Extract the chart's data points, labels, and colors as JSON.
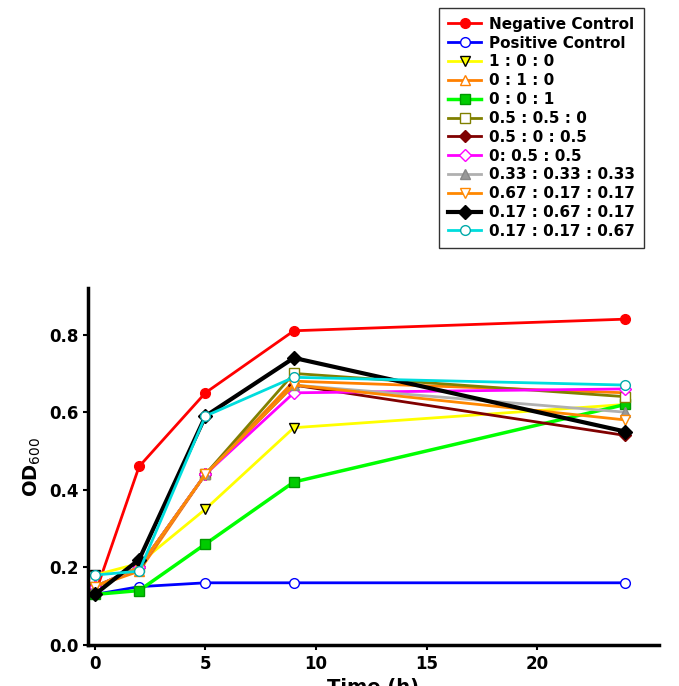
{
  "x": [
    0,
    2,
    5,
    9,
    24
  ],
  "series": [
    {
      "label": "Negative Control",
      "color": "#ff0000",
      "marker": "o",
      "marker_face": "#ff0000",
      "marker_edge": "#ff0000",
      "linewidth": 2,
      "markersize": 7,
      "values": [
        0.13,
        0.46,
        0.65,
        0.81,
        0.84
      ]
    },
    {
      "label": "Positive Control",
      "color": "#0000ff",
      "marker": "o",
      "marker_face": "white",
      "marker_edge": "#0000ff",
      "linewidth": 2,
      "markersize": 7,
      "values": [
        0.13,
        0.15,
        0.16,
        0.16,
        0.16
      ]
    },
    {
      "label": "1 : 0 : 0",
      "color": "#ffff00",
      "marker": "v",
      "marker_face": "#ffff00",
      "marker_edge": "#000000",
      "linewidth": 2,
      "markersize": 7,
      "values": [
        0.18,
        0.21,
        0.35,
        0.56,
        0.62
      ]
    },
    {
      "label": "0 : 1 : 0",
      "color": "#ff8000",
      "marker": "^",
      "marker_face": "white",
      "marker_edge": "#ff8000",
      "linewidth": 2,
      "markersize": 7,
      "values": [
        0.15,
        0.19,
        0.44,
        0.68,
        0.65
      ]
    },
    {
      "label": "0 : 0 : 1",
      "color": "#00ff00",
      "marker": "s",
      "marker_face": "#00cc00",
      "marker_edge": "#009900",
      "linewidth": 2.5,
      "markersize": 7,
      "values": [
        0.13,
        0.14,
        0.26,
        0.42,
        0.62
      ]
    },
    {
      "label": "0.5 : 0.5 : 0",
      "color": "#808000",
      "marker": "s",
      "marker_face": "white",
      "marker_edge": "#808000",
      "linewidth": 2,
      "markersize": 7,
      "values": [
        0.15,
        0.2,
        0.44,
        0.7,
        0.64
      ]
    },
    {
      "label": "0.5 : 0 : 0.5",
      "color": "#800000",
      "marker": "D",
      "marker_face": "#800000",
      "marker_edge": "#800000",
      "linewidth": 2,
      "markersize": 6,
      "values": [
        0.15,
        0.2,
        0.44,
        0.67,
        0.54
      ]
    },
    {
      "label": "0: 0.5 : 0.5",
      "color": "#ff00ff",
      "marker": "D",
      "marker_face": "white",
      "marker_edge": "#ff00ff",
      "linewidth": 2,
      "markersize": 6,
      "values": [
        0.15,
        0.2,
        0.44,
        0.65,
        0.66
      ]
    },
    {
      "label": "0.33 : 0.33 : 0.33",
      "color": "#b0b0b0",
      "marker": "^",
      "marker_face": "#999999",
      "marker_edge": "#888888",
      "linewidth": 2,
      "markersize": 7,
      "values": [
        0.15,
        0.2,
        0.44,
        0.67,
        0.6
      ]
    },
    {
      "label": "0.67 : 0.17 : 0.17",
      "color": "#ff8800",
      "marker": "v",
      "marker_face": "white",
      "marker_edge": "#ff8800",
      "linewidth": 2,
      "markersize": 7,
      "values": [
        0.15,
        0.2,
        0.44,
        0.67,
        0.58
      ]
    },
    {
      "label": "0.17 : 0.67 : 0.17",
      "color": "#000000",
      "marker": "D",
      "marker_face": "#000000",
      "marker_edge": "#000000",
      "linewidth": 3,
      "markersize": 7,
      "values": [
        0.13,
        0.22,
        0.59,
        0.74,
        0.55
      ]
    },
    {
      "label": "0.17 : 0.17 : 0.67",
      "color": "#00dddd",
      "marker": "o",
      "marker_face": "white",
      "marker_edge": "#00aaaa",
      "linewidth": 2,
      "markersize": 7,
      "values": [
        0.18,
        0.19,
        0.59,
        0.69,
        0.67
      ]
    }
  ],
  "xlabel": "Time (h)",
  "xlim": [
    -0.3,
    25.5
  ],
  "ylim": [
    0.0,
    0.92
  ],
  "xticks": [
    0,
    5,
    10,
    15,
    20
  ],
  "yticks": [
    0.0,
    0.2,
    0.4,
    0.6,
    0.8
  ],
  "legend_fontsize": 11,
  "tick_fontsize": 12,
  "axis_label_fontsize": 14
}
